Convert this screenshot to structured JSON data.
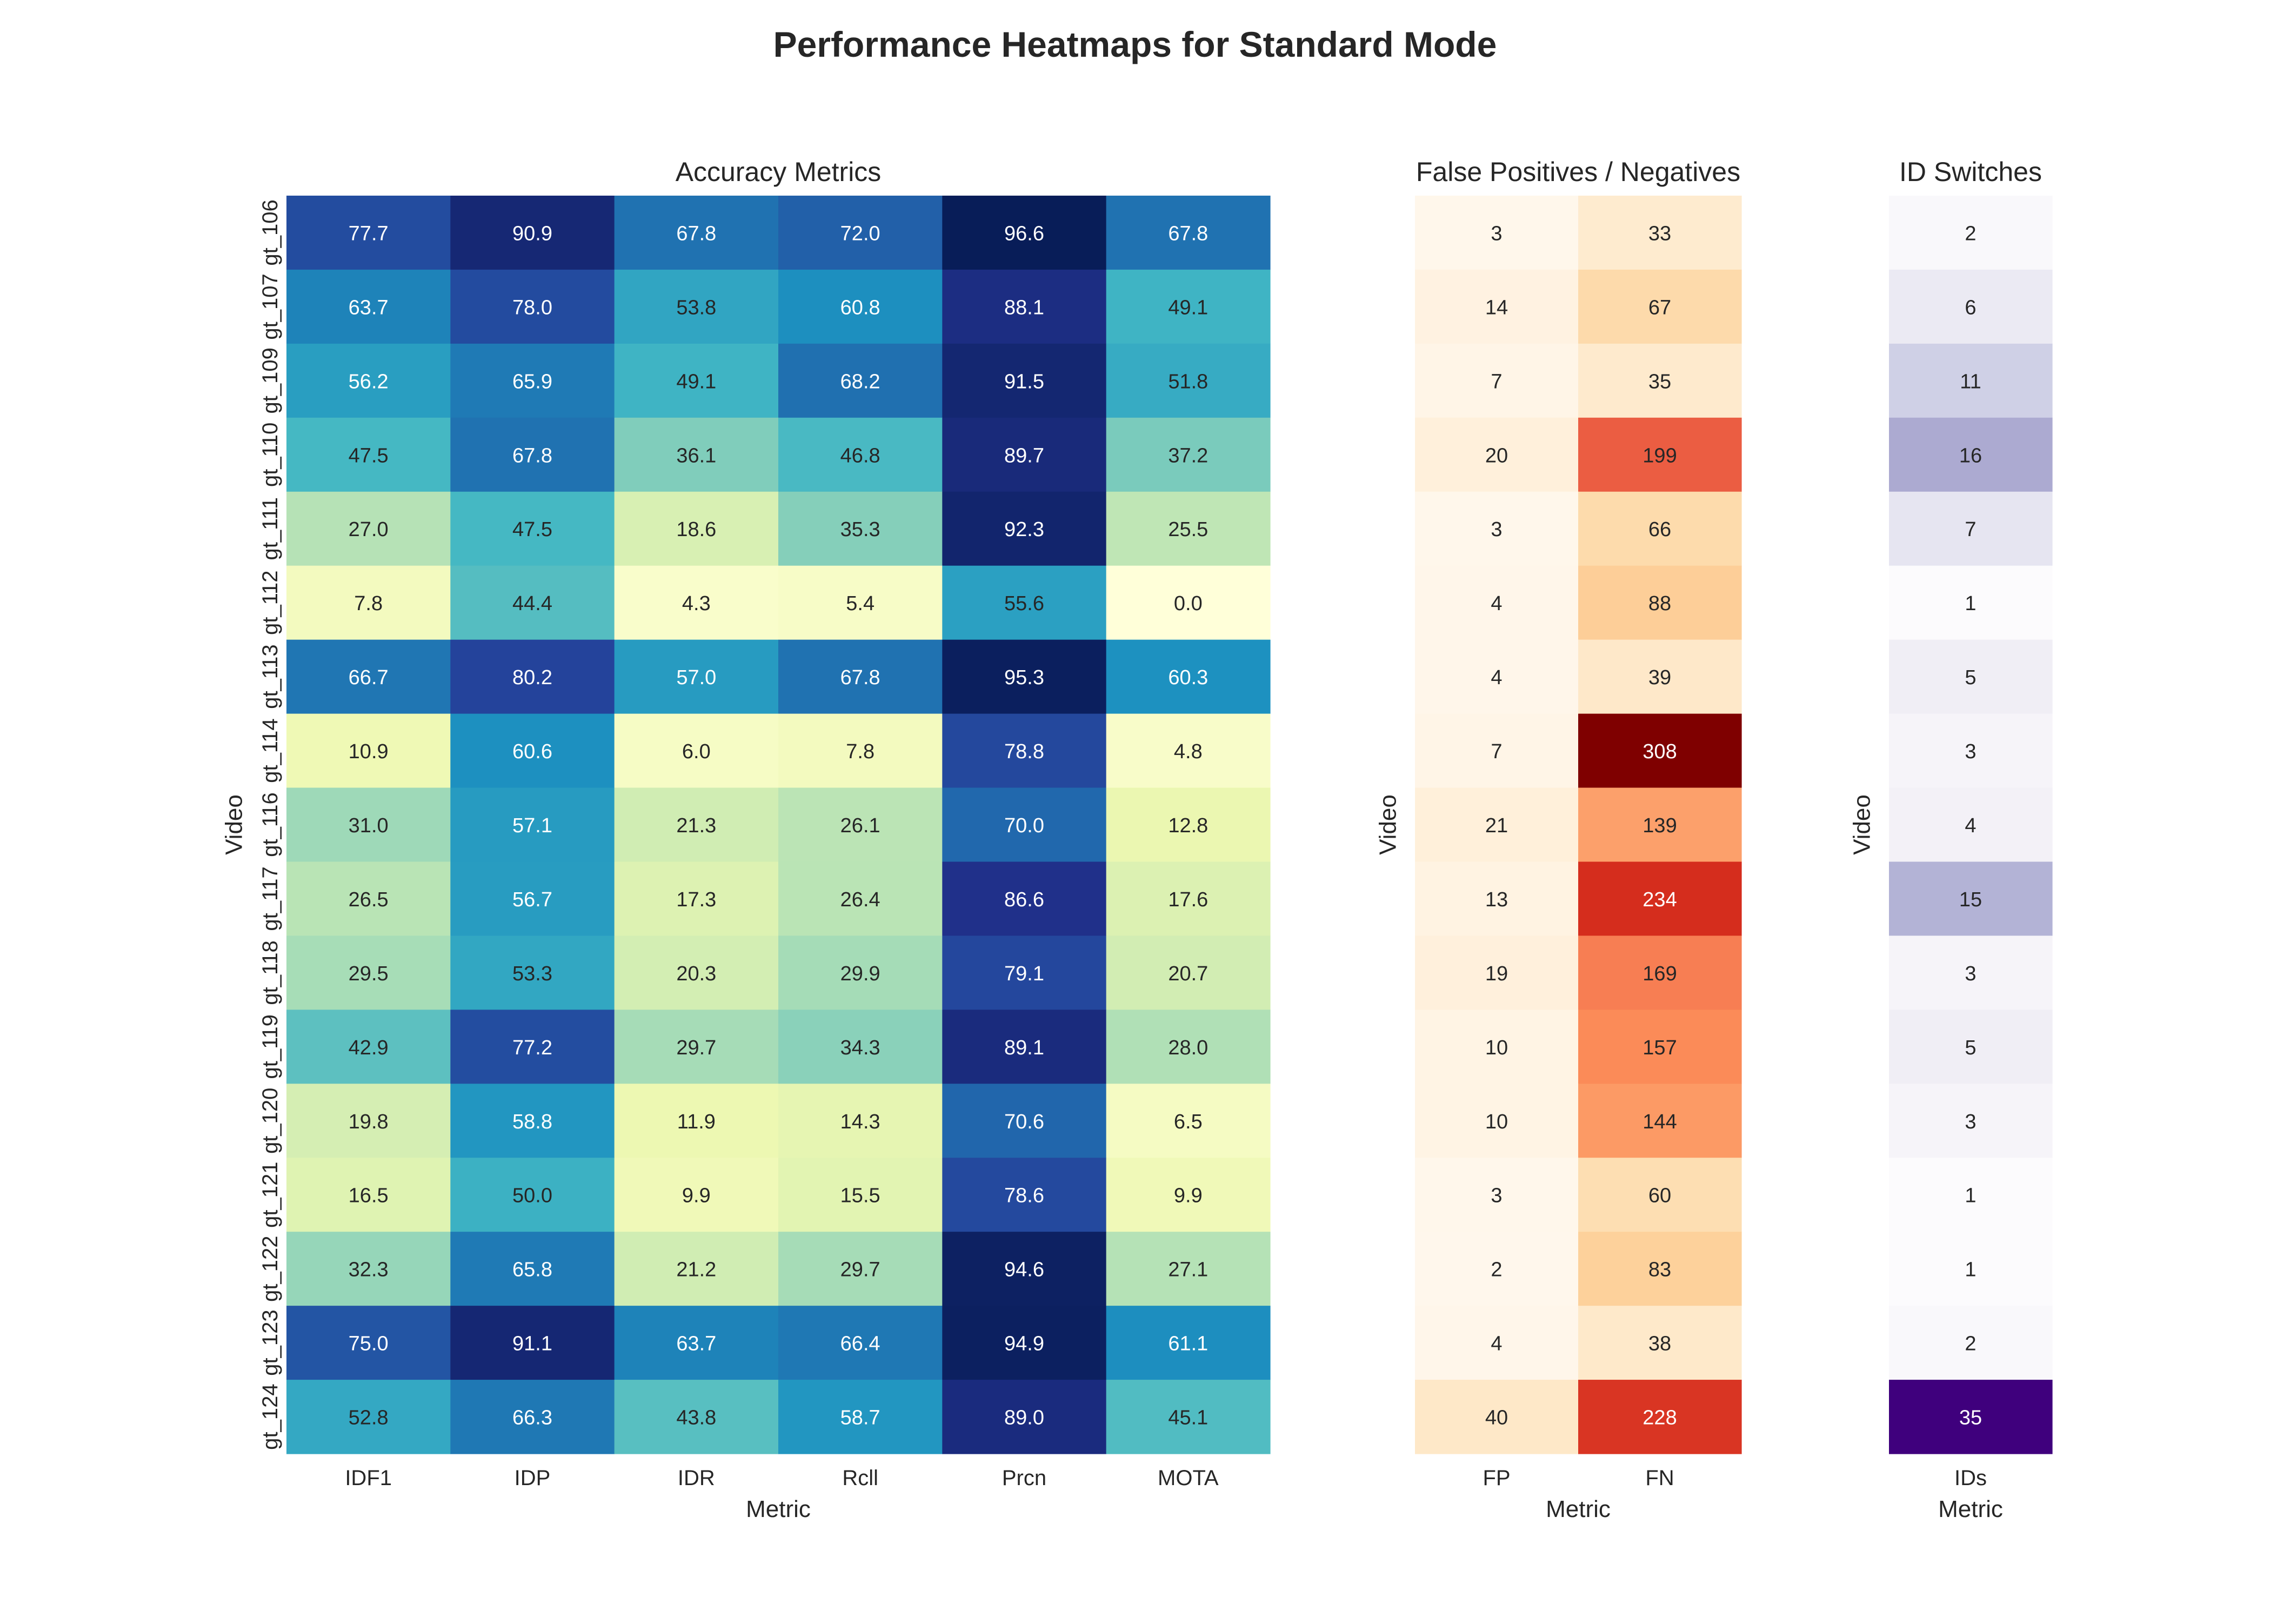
{
  "figure": {
    "title": "Performance Heatmaps for Standard Mode"
  },
  "chart_data": [
    {
      "type": "heatmap",
      "title": "Accuracy Metrics",
      "xlabel": "Metric",
      "ylabel": "Video",
      "colormap": "YlGnBu",
      "columns": [
        "IDF1",
        "IDP",
        "IDR",
        "Rcll",
        "Prcn",
        "MOTA"
      ],
      "rows": [
        "gt_106",
        "gt_107",
        "gt_109",
        "gt_110",
        "gt_111",
        "gt_112",
        "gt_113",
        "gt_114",
        "gt_116",
        "gt_117",
        "gt_118",
        "gt_119",
        "gt_120",
        "gt_121",
        "gt_122",
        "gt_123",
        "gt_124"
      ],
      "values": [
        [
          77.7,
          90.9,
          67.8,
          72.0,
          96.6,
          67.8
        ],
        [
          63.7,
          78.0,
          53.8,
          60.8,
          88.1,
          49.1
        ],
        [
          56.2,
          65.9,
          49.1,
          68.2,
          91.5,
          51.8
        ],
        [
          47.5,
          67.8,
          36.1,
          46.8,
          89.7,
          37.2
        ],
        [
          27.0,
          47.5,
          18.6,
          35.3,
          92.3,
          25.5
        ],
        [
          7.8,
          44.4,
          4.3,
          5.4,
          55.6,
          0.0
        ],
        [
          66.7,
          80.2,
          57.0,
          67.8,
          95.3,
          60.3
        ],
        [
          10.9,
          60.6,
          6.0,
          7.8,
          78.8,
          4.8
        ],
        [
          31.0,
          57.1,
          21.3,
          26.1,
          70.0,
          12.8
        ],
        [
          26.5,
          56.7,
          17.3,
          26.4,
          86.6,
          17.6
        ],
        [
          29.5,
          53.3,
          20.3,
          29.9,
          79.1,
          20.7
        ],
        [
          42.9,
          77.2,
          29.7,
          34.3,
          89.1,
          28.0
        ],
        [
          19.8,
          58.8,
          11.9,
          14.3,
          70.6,
          6.5
        ],
        [
          16.5,
          50.0,
          9.9,
          15.5,
          78.6,
          9.9
        ],
        [
          32.3,
          65.8,
          21.2,
          29.7,
          94.6,
          27.1
        ],
        [
          75.0,
          91.1,
          63.7,
          66.4,
          94.9,
          61.1
        ],
        [
          52.8,
          66.3,
          43.8,
          58.7,
          89.0,
          45.1
        ]
      ],
      "decimals": 1,
      "vmin": 0,
      "vmax": 96.6,
      "show_ytick_labels": true
    },
    {
      "type": "heatmap",
      "title": "False Positives / Negatives",
      "xlabel": "Metric",
      "ylabel": "Video",
      "colormap": "OrRd",
      "columns": [
        "FP",
        "FN"
      ],
      "rows": [
        "gt_106",
        "gt_107",
        "gt_109",
        "gt_110",
        "gt_111",
        "gt_112",
        "gt_113",
        "gt_114",
        "gt_116",
        "gt_117",
        "gt_118",
        "gt_119",
        "gt_120",
        "gt_121",
        "gt_122",
        "gt_123",
        "gt_124"
      ],
      "values": [
        [
          3,
          33
        ],
        [
          14,
          67
        ],
        [
          7,
          35
        ],
        [
          20,
          199
        ],
        [
          3,
          66
        ],
        [
          4,
          88
        ],
        [
          4,
          39
        ],
        [
          7,
          308
        ],
        [
          21,
          139
        ],
        [
          13,
          234
        ],
        [
          19,
          169
        ],
        [
          10,
          157
        ],
        [
          10,
          144
        ],
        [
          3,
          60
        ],
        [
          2,
          83
        ],
        [
          4,
          38
        ],
        [
          40,
          228
        ]
      ],
      "decimals": 0,
      "vmin": 2,
      "vmax": 308,
      "show_ytick_labels": false
    },
    {
      "type": "heatmap",
      "title": "ID Switches",
      "xlabel": "Metric",
      "ylabel": "Video",
      "colormap": "Purples",
      "columns": [
        "IDs"
      ],
      "rows": [
        "gt_106",
        "gt_107",
        "gt_109",
        "gt_110",
        "gt_111",
        "gt_112",
        "gt_113",
        "gt_114",
        "gt_116",
        "gt_117",
        "gt_118",
        "gt_119",
        "gt_120",
        "gt_121",
        "gt_122",
        "gt_123",
        "gt_124"
      ],
      "values": [
        [
          2
        ],
        [
          6
        ],
        [
          11
        ],
        [
          16
        ],
        [
          7
        ],
        [
          1
        ],
        [
          5
        ],
        [
          3
        ],
        [
          4
        ],
        [
          15
        ],
        [
          3
        ],
        [
          5
        ],
        [
          3
        ],
        [
          1
        ],
        [
          1
        ],
        [
          2
        ],
        [
          35
        ]
      ],
      "decimals": 0,
      "vmin": 1,
      "vmax": 35,
      "show_ytick_labels": false
    }
  ]
}
